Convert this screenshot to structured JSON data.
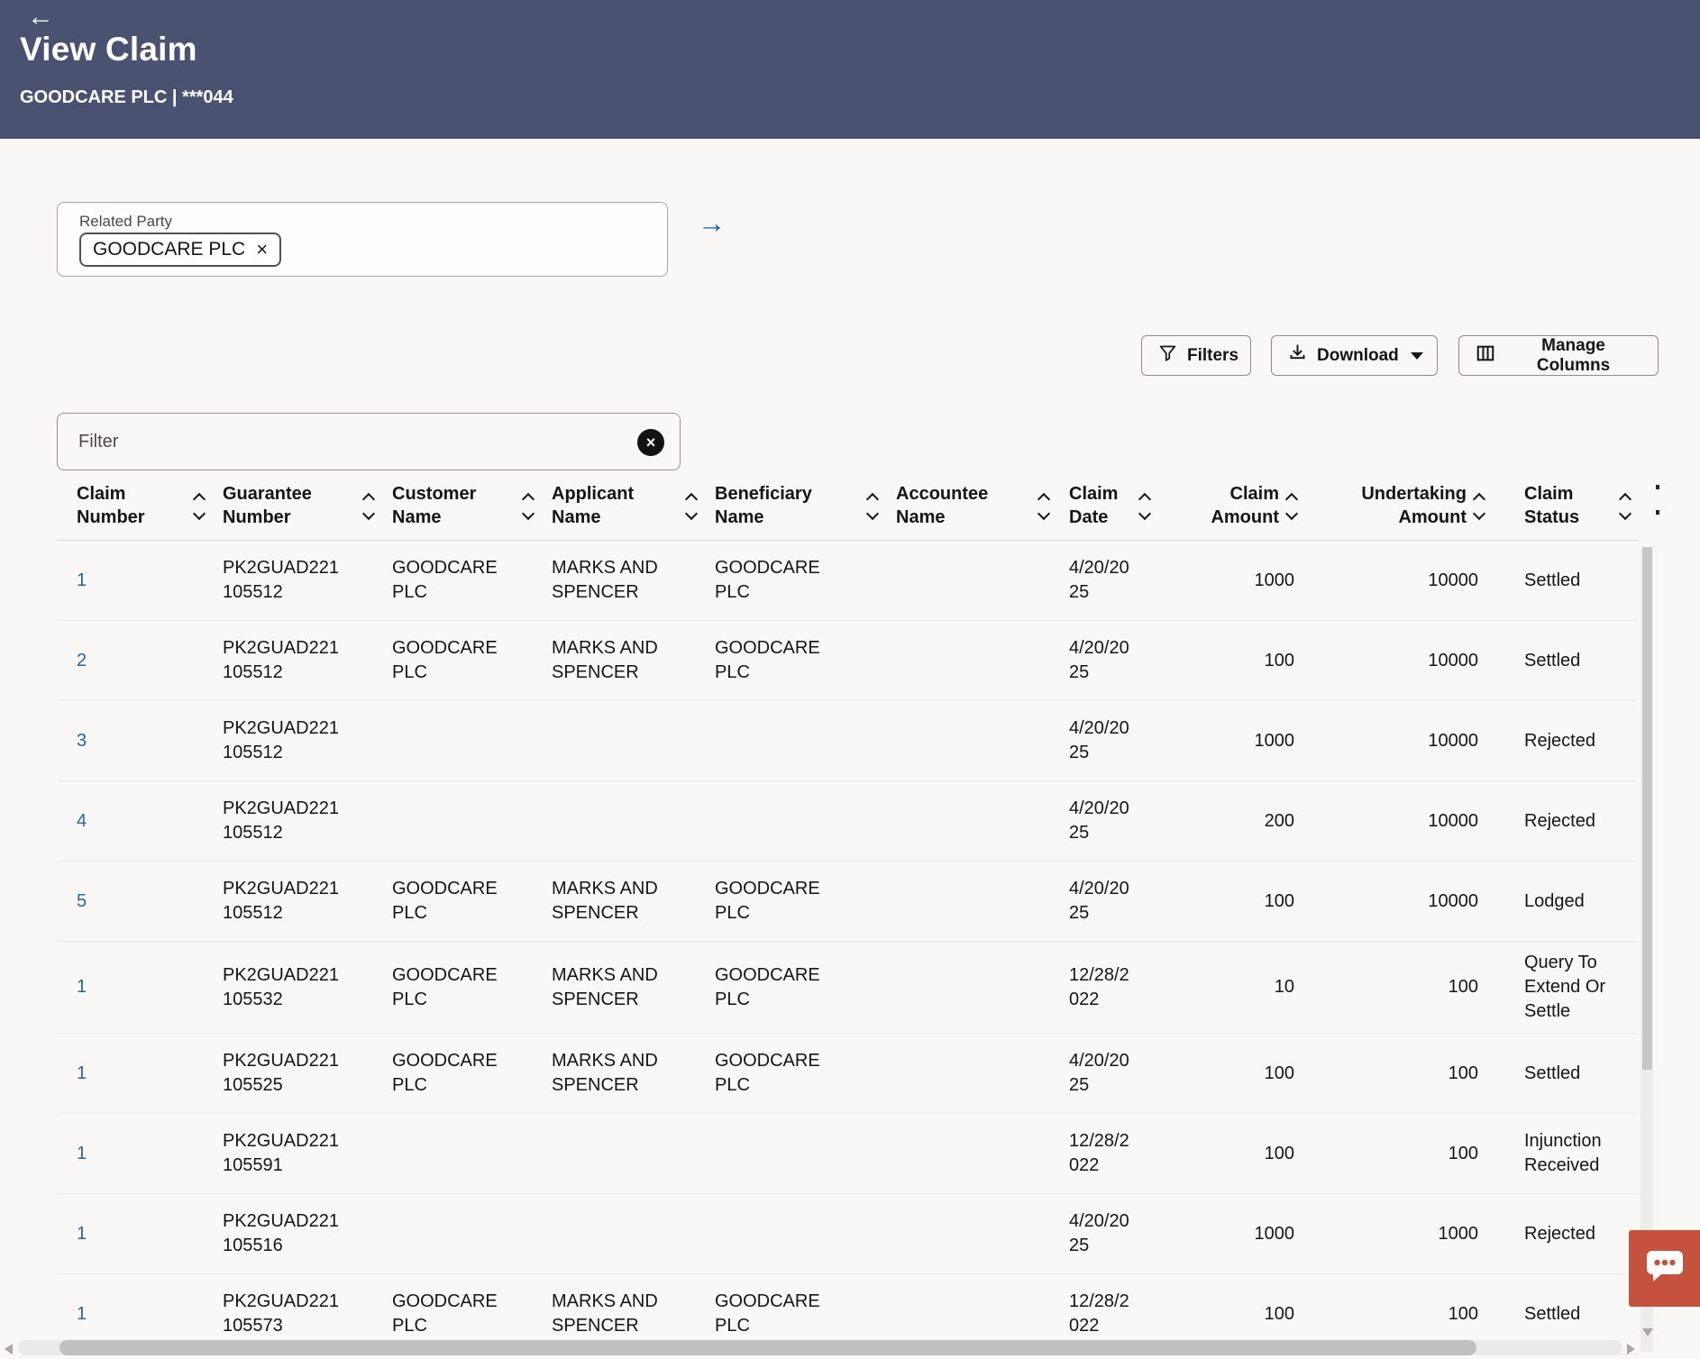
{
  "header": {
    "back_icon": "←",
    "title": "View Claim",
    "subtitle": "GOODCARE PLC | ***044"
  },
  "related_party": {
    "label": "Related Party",
    "chip": "GOODCARE PLC",
    "remove_icon": "×",
    "go_icon": "→"
  },
  "toolbar": {
    "filters_label": "Filters",
    "download_label": "Download",
    "manage_columns_label": "Manage Columns"
  },
  "table_filter": {
    "placeholder": "Filter",
    "clear_icon": "×"
  },
  "table": {
    "columns": [
      "Claim Number",
      "Guarantee Number",
      "Customer Name",
      "Applicant Name",
      "Beneficiary Name",
      "Accountee Name",
      "Claim Date",
      "Claim Amount",
      "Undertaking Amount",
      "Claim Status"
    ],
    "rows": [
      {
        "claim_number": "1",
        "guarantee_number": "PK2GUAD221105512",
        "customer_name": "GOODCARE PLC",
        "applicant_name": "MARKS AND SPENCER",
        "beneficiary_name": "GOODCARE PLC",
        "accountee_name": "",
        "claim_date": "4/20/2025",
        "claim_amount": "1000",
        "undertaking_amount": "10000",
        "claim_status": "Settled"
      },
      {
        "claim_number": "2",
        "guarantee_number": "PK2GUAD221105512",
        "customer_name": "GOODCARE PLC",
        "applicant_name": "MARKS AND SPENCER",
        "beneficiary_name": "GOODCARE PLC",
        "accountee_name": "",
        "claim_date": "4/20/2025",
        "claim_amount": "100",
        "undertaking_amount": "10000",
        "claim_status": "Settled"
      },
      {
        "claim_number": "3",
        "guarantee_number": "PK2GUAD221105512",
        "customer_name": "",
        "applicant_name": "",
        "beneficiary_name": "",
        "accountee_name": "",
        "claim_date": "4/20/2025",
        "claim_amount": "1000",
        "undertaking_amount": "10000",
        "claim_status": "Rejected"
      },
      {
        "claim_number": "4",
        "guarantee_number": "PK2GUAD221105512",
        "customer_name": "",
        "applicant_name": "",
        "beneficiary_name": "",
        "accountee_name": "",
        "claim_date": "4/20/2025",
        "claim_amount": "200",
        "undertaking_amount": "10000",
        "claim_status": "Rejected"
      },
      {
        "claim_number": "5",
        "guarantee_number": "PK2GUAD221105512",
        "customer_name": "GOODCARE PLC",
        "applicant_name": "MARKS AND SPENCER",
        "beneficiary_name": "GOODCARE PLC",
        "accountee_name": "",
        "claim_date": "4/20/2025",
        "claim_amount": "100",
        "undertaking_amount": "10000",
        "claim_status": "Lodged"
      },
      {
        "claim_number": "1",
        "guarantee_number": "PK2GUAD221105532",
        "customer_name": "GOODCARE PLC",
        "applicant_name": "MARKS AND SPENCER",
        "beneficiary_name": "GOODCARE PLC",
        "accountee_name": "",
        "claim_date": "12/28/2022",
        "claim_amount": "10",
        "undertaking_amount": "100",
        "claim_status": "Query To Extend Or Settle"
      },
      {
        "claim_number": "1",
        "guarantee_number": "PK2GUAD221105525",
        "customer_name": "GOODCARE PLC",
        "applicant_name": "MARKS AND SPENCER",
        "beneficiary_name": "GOODCARE PLC",
        "accountee_name": "",
        "claim_date": "4/20/2025",
        "claim_amount": "100",
        "undertaking_amount": "100",
        "claim_status": "Settled"
      },
      {
        "claim_number": "1",
        "guarantee_number": "PK2GUAD221105591",
        "customer_name": "",
        "applicant_name": "",
        "beneficiary_name": "",
        "accountee_name": "",
        "claim_date": "12/28/2022",
        "claim_amount": "100",
        "undertaking_amount": "100",
        "claim_status": "Injunction Received"
      },
      {
        "claim_number": "1",
        "guarantee_number": "PK2GUAD221105516",
        "customer_name": "",
        "applicant_name": "",
        "beneficiary_name": "",
        "accountee_name": "",
        "claim_date": "4/20/2025",
        "claim_amount": "1000",
        "undertaking_amount": "1000",
        "claim_status": "Rejected"
      },
      {
        "claim_number": "1",
        "guarantee_number": "PK2GUAD221105573",
        "customer_name": "GOODCARE PLC",
        "applicant_name": "MARKS AND SPENCER",
        "beneficiary_name": "GOODCARE PLC",
        "accountee_name": "",
        "claim_date": "12/28/2022",
        "claim_amount": "100",
        "undertaking_amount": "100",
        "claim_status": "Settled"
      }
    ]
  },
  "colors": {
    "header_bg": "#4a5272",
    "link_blue": "#2067a8",
    "arrow_blue": "#0d5aa7",
    "chat_red": "#c5523d"
  }
}
